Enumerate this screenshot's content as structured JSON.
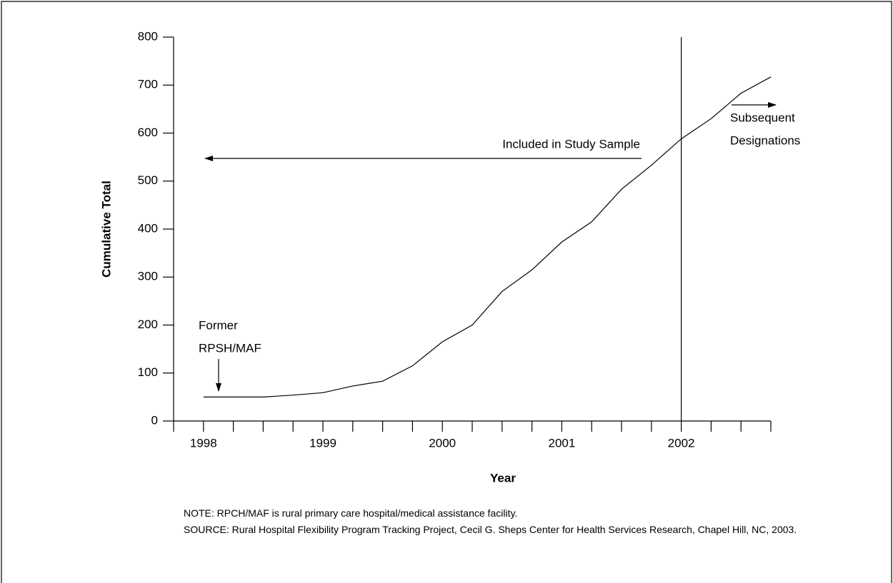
{
  "chart_data": {
    "type": "line",
    "x_label": "Year",
    "y_label": "Cumulative Total",
    "x": [
      1998,
      1998.25,
      1998.5,
      1998.75,
      1999,
      1999.25,
      1999.5,
      1999.75,
      2000,
      2000.25,
      2000.5,
      2000.75,
      2001,
      2001.25,
      2001.5,
      2001.75,
      2002,
      2002.25,
      2002.5,
      2002.75
    ],
    "series": [
      {
        "color": "#000000",
        "values": [
          50,
          50,
          50,
          54,
          59,
          73,
          83,
          115,
          165,
          200,
          270,
          315,
          373,
          415,
          483,
          533,
          588,
          630,
          683,
          717
        ]
      }
    ],
    "xlim": [
      1997.75,
      2002.75
    ],
    "xticks": [
      1998,
      1999,
      2000,
      2001,
      2002
    ],
    "xminor_ticks": [
      1998.25,
      1998.5,
      1998.75,
      1999.25,
      1999.5,
      1999.75,
      2000.25,
      2000.5,
      2000.75,
      2001.25,
      2001.5,
      2001.75,
      2002.25,
      2002.5,
      2002.75
    ],
    "ylim": [
      0,
      800
    ],
    "yticks": [
      0,
      100,
      200,
      300,
      400,
      500,
      600,
      700,
      800
    ],
    "vline": 2002,
    "annotations": [
      {
        "lines": [
          "Former",
          "RPSH/MAF"
        ]
      },
      {
        "lines": [
          "Included in Study Sample"
        ]
      },
      {
        "lines": [
          "Subsequent",
          "Designations"
        ]
      }
    ],
    "notes": [
      "NOTE:  RPCH/MAF is rural primary care hospital/medical assistance facility.",
      "SOURCE:  Rural Hospital Flexibility Program Tracking Project, Cecil G. Sheps Center for Health Services Research, Chapel Hill, NC, 2003."
    ]
  }
}
